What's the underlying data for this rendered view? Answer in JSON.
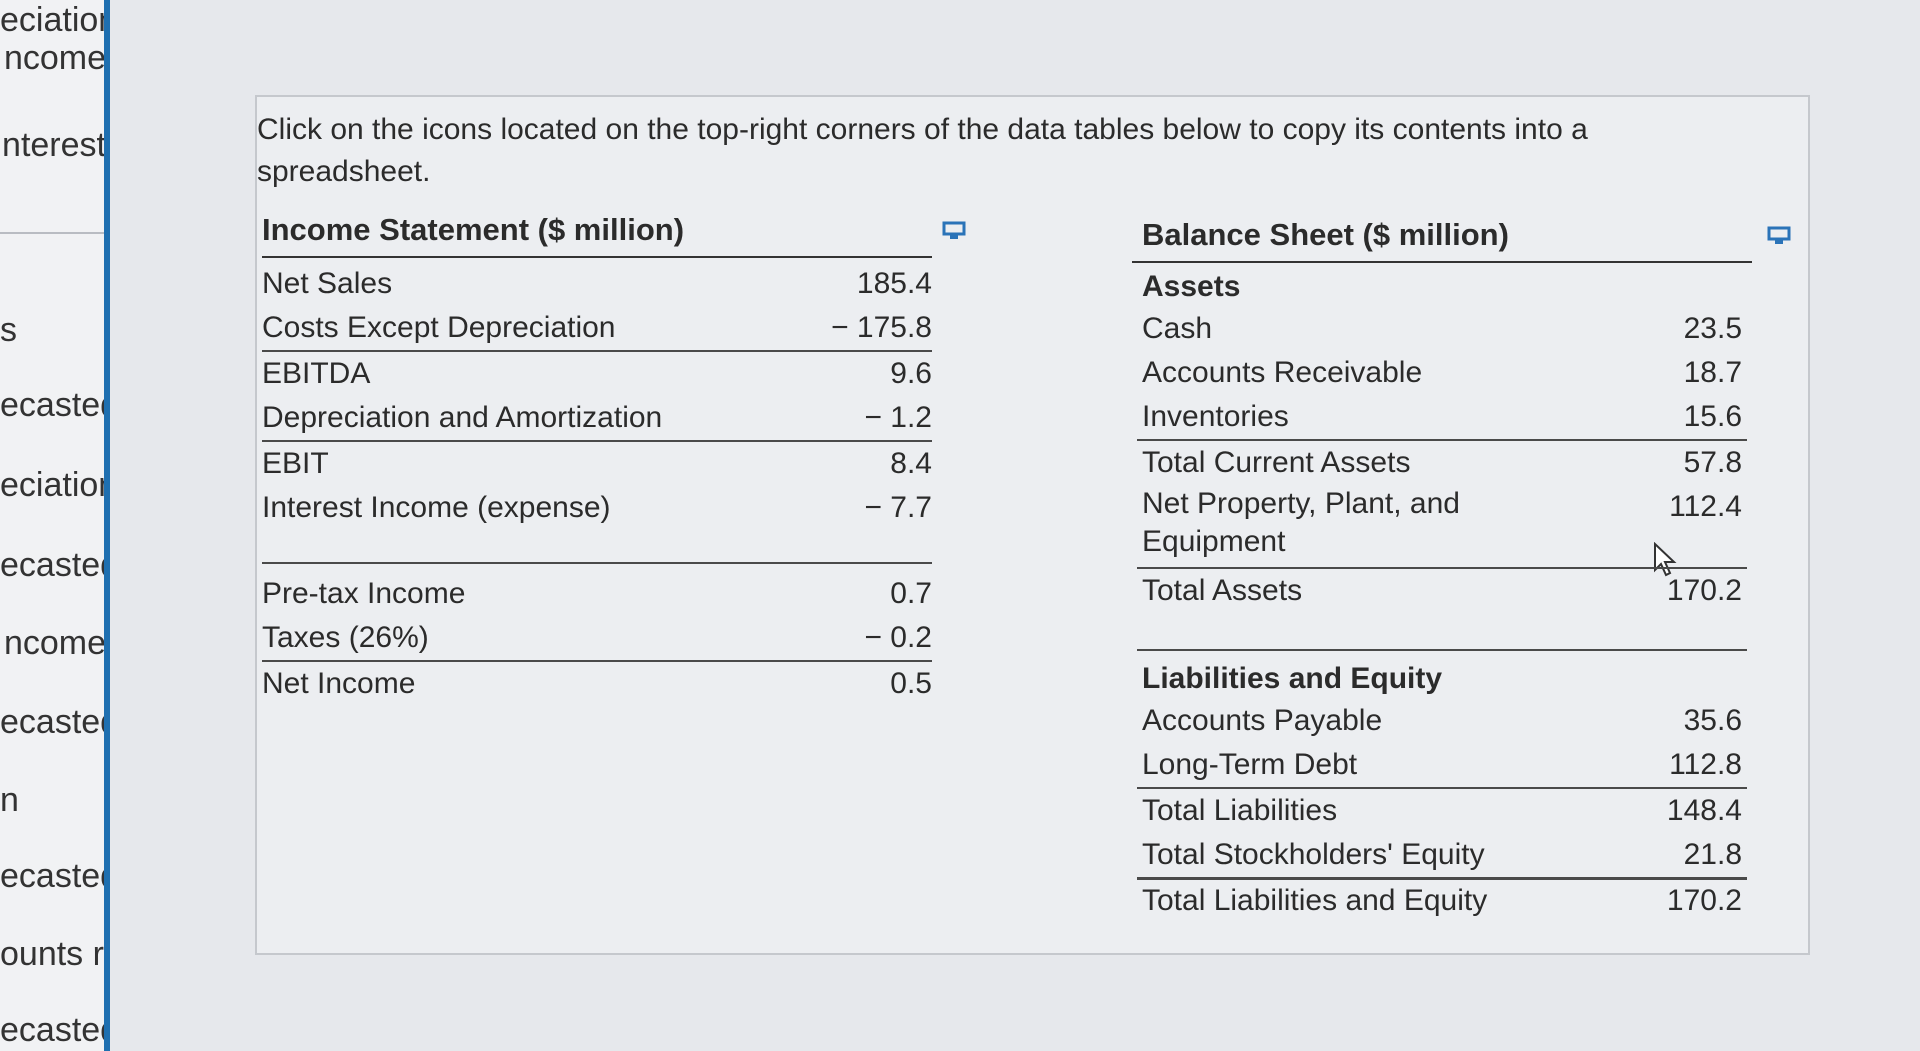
{
  "sidebar": {
    "items": [
      {
        "label": "eciation"
      },
      {
        "label": "ncome"
      },
      {
        "label": "nterest"
      },
      {
        "label": "s"
      },
      {
        "label": "ecasted"
      },
      {
        "label": "eciation"
      },
      {
        "label": "ecasted"
      },
      {
        "label": "ncome"
      },
      {
        "label": "ecasted"
      },
      {
        "label": "n"
      },
      {
        "label": "ecasted"
      },
      {
        "label": "ounts rec"
      },
      {
        "label": "ecasted"
      }
    ]
  },
  "instructions": "Click on the icons located on the top-right corners of the data tables below to copy its contents into a spreadsheet.",
  "income_statement": {
    "title": "Income Statement ($ million)",
    "copy_icon": "copy-icon",
    "rows": [
      {
        "label": "Net Sales",
        "value": "185.4"
      },
      {
        "label": "Costs Except Depreciation",
        "value": "− 175.8"
      },
      {
        "label": "EBITDA",
        "value": "9.6"
      },
      {
        "label": "Depreciation and Amortization",
        "value": "− 1.2"
      },
      {
        "label": "EBIT",
        "value": "8.4"
      },
      {
        "label": "Interest Income (expense)",
        "value": "− 7.7"
      },
      {
        "label": "Pre-tax Income",
        "value": "0.7"
      },
      {
        "label": "Taxes (26%)",
        "value": "− 0.2"
      },
      {
        "label": "Net Income",
        "value": "0.5"
      }
    ]
  },
  "balance_sheet": {
    "title": "Balance Sheet ($ million)",
    "copy_icon": "copy-icon",
    "assets_header": "Assets",
    "assets": [
      {
        "label": "Cash",
        "value": "23.5"
      },
      {
        "label": "Accounts Receivable",
        "value": "18.7"
      },
      {
        "label": "Inventories",
        "value": "15.6"
      },
      {
        "label": "Total Current Assets",
        "value": "57.8"
      },
      {
        "label": "Net Property, Plant, and Equipment",
        "value": "112.4"
      },
      {
        "label": "Total Assets",
        "value": "170.2"
      }
    ],
    "liabilities_header": "Liabilities and Equity",
    "liabilities": [
      {
        "label": "Accounts Payable",
        "value": "35.6"
      },
      {
        "label": "Long-Term Debt",
        "value": "112.8"
      },
      {
        "label": "Total Liabilities",
        "value": "148.4"
      },
      {
        "label": "Total Stockholders' Equity",
        "value": "21.8"
      },
      {
        "label": "Total Liabilities and Equity",
        "value": "170.2"
      }
    ]
  },
  "colors": {
    "sidebar_accent": "#1e6fb0",
    "panel_bg": "#eceef1",
    "icon_blue": "#2a73b8"
  }
}
